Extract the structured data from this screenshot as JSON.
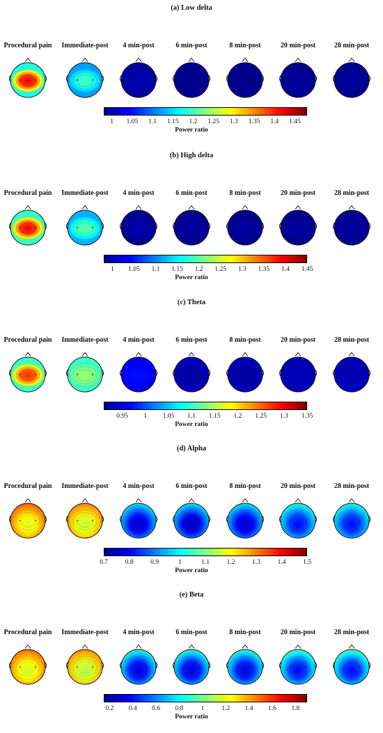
{
  "conditions": [
    "Procedural pain",
    "Immediate-post",
    "4 min-post",
    "6 min-post",
    "8 min-post",
    "20 min-post",
    "28 min-post"
  ],
  "colorbar_label": "Power ratio",
  "colormap": [
    "#00008f",
    "#0000ff",
    "#0080ff",
    "#00ffff",
    "#80ff80",
    "#ffff00",
    "#ff8000",
    "#ff0000",
    "#800000"
  ],
  "panels": [
    {
      "title": "(a) Low delta",
      "ticks": [
        "1",
        "1.05",
        "1.1",
        "1.15",
        "1.2",
        "1.25",
        "1.3",
        "1.35",
        "1.4",
        "1.45"
      ],
      "scale": [
        0.98,
        1.48
      ],
      "pattern": "central",
      "center_values": [
        1.43,
        1.2,
        1.0,
        0.98,
        0.98,
        0.99,
        0.99
      ],
      "edge_values": [
        1.18,
        1.12,
        0.99,
        0.98,
        0.98,
        0.98,
        0.98
      ]
    },
    {
      "title": "(b) High delta",
      "ticks": [
        "1",
        "1.05",
        "1.1",
        "1.15",
        "1.2",
        "1.25",
        "1.3",
        "1.35",
        "1.4",
        "1.45"
      ],
      "scale": [
        0.98,
        1.45
      ],
      "pattern": "central",
      "center_values": [
        1.4,
        1.2,
        1.0,
        0.99,
        0.99,
        0.99,
        0.99
      ],
      "edge_values": [
        1.18,
        1.12,
        0.98,
        0.98,
        0.98,
        0.98,
        0.98
      ]
    },
    {
      "title": "(c) Theta",
      "ticks": [
        "0.95",
        "1",
        "1.05",
        "1.1",
        "1.15",
        "1.2",
        "1.25",
        "1.3",
        "1.35"
      ],
      "scale": [
        0.91,
        1.35
      ],
      "pattern": "central",
      "center_values": [
        1.28,
        1.14,
        0.97,
        0.92,
        0.92,
        0.93,
        0.93
      ],
      "edge_values": [
        1.1,
        1.1,
        0.96,
        0.93,
        0.93,
        0.93,
        0.93
      ]
    },
    {
      "title": "(d) Alpha",
      "ticks": [
        "0.7",
        "0.8",
        "0.9",
        "1",
        "1.1",
        "1.2",
        "1.3",
        "1.4",
        "1.5"
      ],
      "scale": [
        0.7,
        1.5
      ],
      "pattern": "frontal",
      "center_values": [
        1.17,
        1.15,
        0.75,
        0.73,
        0.75,
        0.8,
        0.8
      ],
      "edge_values": [
        1.35,
        1.32,
        1.02,
        1.02,
        1.02,
        1.05,
        1.05
      ]
    },
    {
      "title": "(e) Beta",
      "ticks": [
        "0.2",
        "0.4",
        "0.6",
        "0.8",
        "1",
        "1.2",
        "1.4",
        "1.6",
        "1.8"
      ],
      "scale": [
        0.15,
        1.9
      ],
      "pattern": "frontal",
      "center_values": [
        1.15,
        1.1,
        0.28,
        0.28,
        0.3,
        0.35,
        0.35
      ],
      "edge_values": [
        1.55,
        1.5,
        0.95,
        0.95,
        0.95,
        1.0,
        1.0
      ]
    }
  ]
}
